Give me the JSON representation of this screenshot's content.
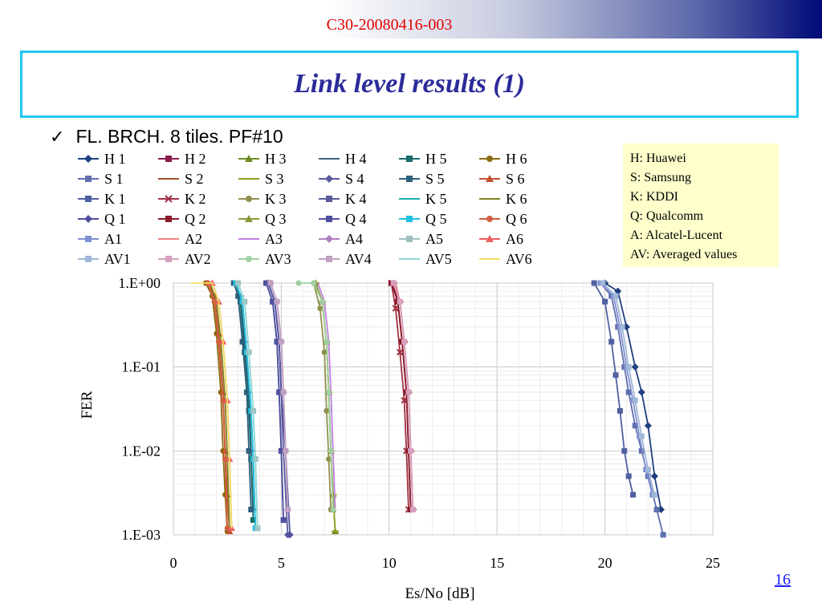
{
  "header": {
    "doc_id": "C30-20080416-003"
  },
  "slide": {
    "title": "Link level results (1)",
    "bullet_icon": "checkmark-icon",
    "bullet": "FL. BRCH. 8 tiles. PF#10",
    "page_number": "16"
  },
  "abbreviations": [
    "H: Huawei",
    "S: Samsung",
    "K: KDDI",
    "Q: Qualcomm",
    "A: Alcatel-Lucent",
    "AV: Averaged values"
  ],
  "chart_data": {
    "type": "line",
    "title": "",
    "xlabel": "Es/No [dB]",
    "ylabel": "FER",
    "xlim": [
      0,
      25
    ],
    "ylim": [
      0.001,
      1
    ],
    "yscale": "log",
    "x_ticks": [
      "0",
      "5",
      "10",
      "15",
      "20",
      "25"
    ],
    "y_ticks": [
      "1.E+00",
      "1.E-01",
      "1.E-02",
      "1.E-03"
    ],
    "grid": true,
    "legend_position": "top",
    "series": [
      {
        "name": "H 1",
        "color": "#1f3f7f",
        "marker": "diamond",
        "x": [
          20.0,
          20.6,
          21.0,
          21.4,
          21.7,
          22.0,
          22.3,
          22.6
        ],
        "y": [
          1,
          0.8,
          0.3,
          0.1,
          0.05,
          0.02,
          0.005,
          0.002
        ]
      },
      {
        "name": "H 2",
        "color": "#8b1a4a",
        "marker": "square",
        "x": [
          10.2,
          10.4,
          10.6,
          10.8,
          10.9,
          11.0
        ],
        "y": [
          1,
          0.6,
          0.2,
          0.05,
          0.01,
          0.002
        ]
      },
      {
        "name": "H 3",
        "color": "#6b8e23",
        "marker": "triangle",
        "x": [
          6.6,
          6.9,
          7.1,
          7.2,
          7.3,
          7.4,
          7.5
        ],
        "y": [
          1,
          0.6,
          0.2,
          0.05,
          0.01,
          0.003,
          0.0011
        ]
      },
      {
        "name": "H 4",
        "color": "#3f5f7f",
        "marker": "dash",
        "x": [
          2.9,
          3.1,
          3.3,
          3.5,
          3.6,
          3.7
        ],
        "y": [
          1,
          0.7,
          0.2,
          0.05,
          0.01,
          0.002
        ]
      },
      {
        "name": "H 5",
        "color": "#1a6b6b",
        "marker": "square",
        "x": [
          2.9,
          3.1,
          3.3,
          3.5,
          3.6,
          3.7
        ],
        "y": [
          1,
          0.6,
          0.15,
          0.03,
          0.008,
          0.0015
        ]
      },
      {
        "name": "H 6",
        "color": "#8b6b10",
        "marker": "circle",
        "x": [
          1.5,
          1.8,
          2.0,
          2.2,
          2.3,
          2.4,
          2.5
        ],
        "y": [
          1,
          0.7,
          0.25,
          0.05,
          0.01,
          0.003,
          0.0011
        ]
      },
      {
        "name": "S 1",
        "color": "#5f6faf",
        "marker": "square",
        "x": [
          19.8,
          20.3,
          20.6,
          20.9,
          21.1,
          21.4,
          21.7,
          22.0,
          22.4,
          22.7
        ],
        "y": [
          1,
          0.7,
          0.3,
          0.1,
          0.05,
          0.02,
          0.01,
          0.005,
          0.002,
          0.001
        ]
      },
      {
        "name": "S 2",
        "color": "#a0522d",
        "marker": "dash",
        "x": [
          10.2,
          10.5,
          10.7,
          10.9,
          11.0,
          11.1
        ],
        "y": [
          1,
          0.6,
          0.2,
          0.05,
          0.01,
          0.002
        ]
      },
      {
        "name": "S 3",
        "color": "#8fa020",
        "marker": "dash",
        "x": [
          6.6,
          6.9,
          7.1,
          7.2,
          7.3,
          7.4,
          7.5
        ],
        "y": [
          1,
          0.6,
          0.2,
          0.05,
          0.01,
          0.003,
          0.0011
        ]
      },
      {
        "name": "S 4",
        "color": "#5a5aa0",
        "marker": "diamond",
        "x": [
          4.4,
          4.7,
          4.9,
          5.0,
          5.1,
          5.3
        ],
        "y": [
          1,
          0.6,
          0.2,
          0.05,
          0.01,
          0.001
        ]
      },
      {
        "name": "S 5",
        "color": "#2f5f7f",
        "marker": "square",
        "x": [
          2.8,
          3.0,
          3.2,
          3.4,
          3.5,
          3.6
        ],
        "y": [
          1,
          0.7,
          0.2,
          0.05,
          0.01,
          0.002
        ]
      },
      {
        "name": "S 6",
        "color": "#c05030",
        "marker": "triangle",
        "x": [
          1.6,
          1.9,
          2.1,
          2.3,
          2.4,
          2.5,
          2.6
        ],
        "y": [
          1,
          0.7,
          0.25,
          0.05,
          0.01,
          0.003,
          0.0011
        ]
      },
      {
        "name": "K 1",
        "color": "#5060a0",
        "marker": "square",
        "x": [
          19.5,
          20.0,
          20.3,
          20.5,
          20.7,
          20.9,
          21.1,
          21.3
        ],
        "y": [
          1,
          0.6,
          0.2,
          0.08,
          0.03,
          0.01,
          0.005,
          0.003
        ]
      },
      {
        "name": "K 2",
        "color": "#a03040",
        "marker": "x",
        "x": [
          10.1,
          10.3,
          10.5,
          10.7,
          10.8,
          10.9
        ],
        "y": [
          1,
          0.5,
          0.15,
          0.04,
          0.01,
          0.002
        ]
      },
      {
        "name": "K 3",
        "color": "#909050",
        "marker": "circle",
        "x": [
          6.5,
          6.8,
          7.0,
          7.1,
          7.2,
          7.3
        ],
        "y": [
          1,
          0.5,
          0.15,
          0.03,
          0.008,
          0.002
        ]
      },
      {
        "name": "K 4",
        "color": "#5a5a9a",
        "marker": "square",
        "x": [
          4.3,
          4.6,
          4.8,
          4.9,
          5.0,
          5.1
        ],
        "y": [
          1,
          0.6,
          0.2,
          0.05,
          0.01,
          0.0015
        ]
      },
      {
        "name": "K 5",
        "color": "#20b0b0",
        "marker": "none",
        "x": [
          2.9,
          3.2,
          3.4,
          3.6,
          3.7,
          3.8
        ],
        "y": [
          1,
          0.6,
          0.15,
          0.03,
          0.008,
          0.0012
        ]
      },
      {
        "name": "K 6",
        "color": "#7f8020",
        "marker": "none",
        "x": [
          1.7,
          2.0,
          2.2,
          2.4,
          2.5,
          2.6
        ],
        "y": [
          1,
          0.6,
          0.2,
          0.04,
          0.008,
          0.0012
        ]
      },
      {
        "name": "Q 1",
        "color": "#5050a0",
        "marker": "diamond",
        "x": [
          4.4,
          4.7,
          4.9,
          5.0,
          5.2,
          5.4
        ],
        "y": [
          1,
          0.6,
          0.2,
          0.05,
          0.01,
          0.001
        ]
      },
      {
        "name": "Q 2",
        "color": "#8b1a2a",
        "marker": "square",
        "x": [
          10.1,
          10.4,
          10.6,
          10.8,
          10.9,
          11.0
        ],
        "y": [
          1,
          0.6,
          0.2,
          0.05,
          0.01,
          0.002
        ]
      },
      {
        "name": "Q 3",
        "color": "#8a9a3a",
        "marker": "triangle",
        "x": [
          6.6,
          6.9,
          7.1,
          7.2,
          7.3,
          7.4
        ],
        "y": [
          1,
          0.6,
          0.2,
          0.05,
          0.01,
          0.002
        ]
      },
      {
        "name": "Q 4",
        "color": "#5050a0",
        "marker": "square",
        "x": [
          4.3,
          4.6,
          4.8,
          4.9,
          5.0,
          5.1
        ],
        "y": [
          1,
          0.6,
          0.2,
          0.05,
          0.01,
          0.0015
        ]
      },
      {
        "name": "Q 5",
        "color": "#20c0e0",
        "marker": "square",
        "x": [
          2.9,
          3.2,
          3.4,
          3.6,
          3.7,
          3.8
        ],
        "y": [
          1,
          0.6,
          0.15,
          0.03,
          0.008,
          0.0012
        ]
      },
      {
        "name": "Q 6",
        "color": "#d06040",
        "marker": "circle",
        "x": [
          1.6,
          1.9,
          2.1,
          2.3,
          2.4,
          2.5
        ],
        "y": [
          1,
          0.6,
          0.2,
          0.04,
          0.008,
          0.0012
        ]
      },
      {
        "name": "A1",
        "color": "#8090d0",
        "marker": "square",
        "x": [
          19.8,
          20.4,
          20.7,
          21.0,
          21.3,
          21.6,
          21.9,
          22.2
        ],
        "y": [
          1,
          0.7,
          0.3,
          0.1,
          0.04,
          0.015,
          0.006,
          0.003
        ]
      },
      {
        "name": "A2",
        "color": "#f08080",
        "marker": "none",
        "x": [
          10.3,
          10.5,
          10.7,
          10.9,
          11.0,
          11.1
        ],
        "y": [
          1,
          0.6,
          0.2,
          0.05,
          0.01,
          0.002
        ]
      },
      {
        "name": "A3",
        "color": "#c080e0",
        "marker": "none",
        "x": [
          6.7,
          7.0,
          7.2,
          7.3,
          7.4,
          7.5
        ],
        "y": [
          1,
          0.6,
          0.2,
          0.05,
          0.01,
          0.002
        ]
      },
      {
        "name": "A4",
        "color": "#b080c0",
        "marker": "diamond",
        "x": [
          4.5,
          4.8,
          5.0,
          5.1,
          5.2,
          5.3
        ],
        "y": [
          1,
          0.6,
          0.2,
          0.05,
          0.01,
          0.002
        ]
      },
      {
        "name": "A5",
        "color": "#a0c0c0",
        "marker": "square",
        "x": [
          3.0,
          3.3,
          3.5,
          3.7,
          3.8,
          3.9
        ],
        "y": [
          1,
          0.6,
          0.15,
          0.03,
          0.008,
          0.0012
        ]
      },
      {
        "name": "A6",
        "color": "#f06060",
        "marker": "triangle",
        "x": [
          1.8,
          2.1,
          2.3,
          2.5,
          2.6,
          2.7
        ],
        "y": [
          1,
          0.6,
          0.2,
          0.04,
          0.008,
          0.0012
        ]
      },
      {
        "name": "AV1",
        "color": "#a0b8d8",
        "marker": "square",
        "x": [
          19.9,
          20.5,
          20.8,
          21.1,
          21.4,
          21.7,
          22.0,
          22.3
        ],
        "y": [
          1,
          0.7,
          0.3,
          0.1,
          0.04,
          0.015,
          0.006,
          0.003
        ]
      },
      {
        "name": "AV2",
        "color": "#d8a0c0",
        "marker": "square",
        "x": [
          10.2,
          10.5,
          10.7,
          10.9,
          11.0,
          11.1
        ],
        "y": [
          1,
          0.6,
          0.2,
          0.05,
          0.01,
          0.002
        ]
      },
      {
        "name": "AV3",
        "color": "#a0d0a0",
        "marker": "circle",
        "x": [
          5.8,
          6.5,
          6.9,
          7.1,
          7.2,
          7.3,
          7.4
        ],
        "y": [
          1,
          1,
          0.6,
          0.2,
          0.05,
          0.01,
          0.002
        ]
      },
      {
        "name": "AV4",
        "color": "#c0a0c0",
        "marker": "square",
        "x": [
          4.5,
          4.8,
          5.0,
          5.1,
          5.2,
          5.3
        ],
        "y": [
          1,
          0.6,
          0.2,
          0.05,
          0.01,
          0.002
        ]
      },
      {
        "name": "AV5",
        "color": "#90d8d8",
        "marker": "none",
        "x": [
          3.0,
          3.3,
          3.5,
          3.7,
          3.8,
          3.9
        ],
        "y": [
          1,
          0.6,
          0.15,
          0.03,
          0.008,
          0.0012
        ]
      },
      {
        "name": "AV6",
        "color": "#f0e060",
        "marker": "none",
        "x": [
          0.8,
          1.8,
          2.1,
          2.3,
          2.5,
          2.6,
          2.7
        ],
        "y": [
          1,
          1,
          0.6,
          0.2,
          0.04,
          0.008,
          0.0012
        ]
      }
    ]
  }
}
